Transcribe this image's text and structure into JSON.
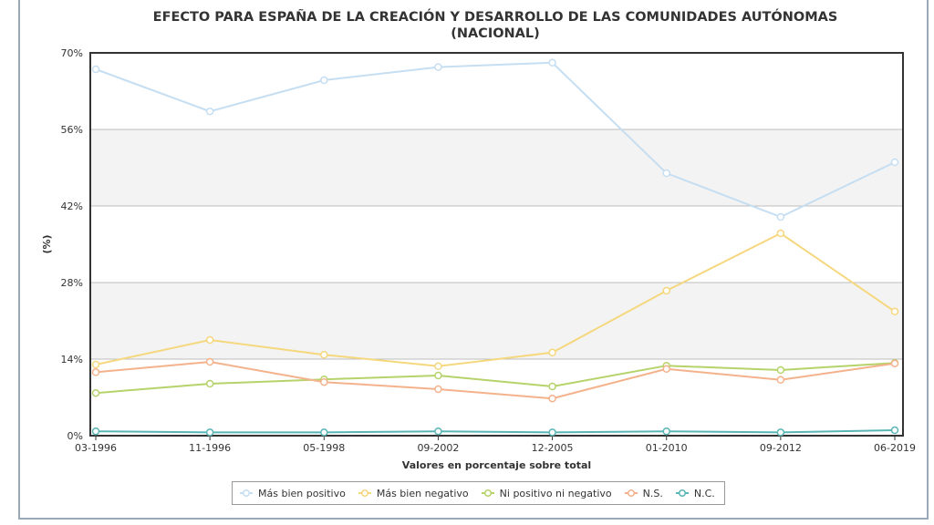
{
  "chart_data": {
    "type": "line",
    "title_line1": "EFECTO PARA ESPAÑA DE LA CREACIÓN Y DESARROLLO DE LAS COMUNIDADES AUTÓNOMAS",
    "title_line2": "(NACIONAL)",
    "xlabel": "Valores en porcentaje sobre total",
    "ylabel": "(%)",
    "ylim": [
      0,
      70
    ],
    "yticks": [
      "0%",
      "14%",
      "28%",
      "42%",
      "56%",
      "70%"
    ],
    "ytick_values": [
      0,
      14,
      28,
      42,
      56,
      70
    ],
    "categories": [
      "03-1996",
      "11-1996",
      "05-1998",
      "09-2002",
      "12-2005",
      "01-2010",
      "09-2012",
      "06-2019"
    ],
    "grid": true,
    "legend_position": "bottom",
    "series": [
      {
        "name": "Más bien positivo",
        "color": "#c6def2",
        "values": [
          67.0,
          59.3,
          65.0,
          67.4,
          68.2,
          48.0,
          40.0,
          50.0
        ]
      },
      {
        "name": "Más bien negativo",
        "color": "#f5d77e",
        "values": [
          13.0,
          17.5,
          14.8,
          12.7,
          15.2,
          26.5,
          37.0,
          22.7
        ]
      },
      {
        "name": "Ni positivo ni negativo",
        "color": "#b5d36a",
        "values": [
          7.8,
          9.5,
          10.3,
          11.0,
          9.0,
          12.8,
          12.0,
          13.3
        ]
      },
      {
        "name": "N.S.",
        "color": "#f4b28c",
        "values": [
          11.6,
          13.5,
          9.8,
          8.5,
          6.8,
          12.2,
          10.2,
          13.2
        ]
      },
      {
        "name": "N.C.",
        "color": "#5ab5b5",
        "values": [
          0.8,
          0.6,
          0.6,
          0.8,
          0.6,
          0.8,
          0.6,
          1.0
        ]
      }
    ]
  }
}
